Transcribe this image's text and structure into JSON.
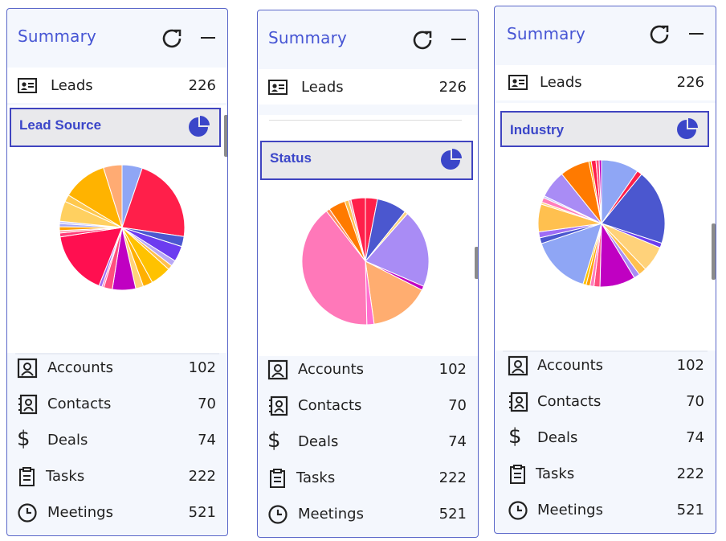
{
  "panels": [
    {
      "title": "Summary",
      "leads": {
        "label": "Leads",
        "count": "226"
      },
      "selector": {
        "label": "Lead Source"
      },
      "chart_data": {
        "type": "pie",
        "values": [
          5.2,
          22.0,
          2.6,
          4.0,
          1.5,
          1.2,
          5.3,
          2.5,
          2.0,
          6.0,
          2.2,
          0.5,
          0.8,
          16.5,
          1.0,
          0.6,
          1.0,
          0.8,
          0.6,
          5.2,
          1.8,
          11.5,
          4.8
        ],
        "colors": [
          "#8fa6f5",
          "#ff1f4a",
          "#4b57cf",
          "#6c3cf0",
          "#b9a8f5",
          "#ffc04f",
          "#ffc200",
          "#ffb000",
          "#ffd27a",
          "#c000c2",
          "#ff4f7e",
          "#ff7ebc",
          "#9e6cf5",
          "#ff0f50",
          "#ff3f7a",
          "#ff9eaa",
          "#ffa000",
          "#a7a7f5",
          "#c7c7ff",
          "#ffd060",
          "#ffc84d",
          "#ffb300",
          "#ffab73"
        ]
      },
      "items": [
        {
          "icon": "account-icon",
          "label": "Accounts",
          "count": "102"
        },
        {
          "icon": "contacts-icon",
          "label": "Contacts",
          "count": "70"
        },
        {
          "icon": "dollar-icon",
          "label": "Deals",
          "count": "74"
        },
        {
          "icon": "clipboard-icon",
          "label": "Tasks",
          "count": "222"
        },
        {
          "icon": "clock-icon",
          "label": "Meetings",
          "count": "521"
        }
      ]
    },
    {
      "title": "Summary",
      "leads": {
        "label": "Leads",
        "count": "226"
      },
      "selector": {
        "label": "Status"
      },
      "chart_data": {
        "type": "pie",
        "values": [
          3.0,
          7.5,
          0.8,
          19.5,
          1.0,
          15.0,
          1.8,
          39.0,
          0.9,
          4.2,
          1.0,
          0.6,
          3.6
        ],
        "colors": [
          "#ff1f4a",
          "#4b57cf",
          "#ffd480",
          "#a98cf5",
          "#c000c2",
          "#ffad70",
          "#ff6fd0",
          "#ff78b9",
          "#ff8b5a",
          "#ff7a00",
          "#ffc04f",
          "#f3a0b0",
          "#ff1f4a"
        ]
      },
      "items": [
        {
          "icon": "account-icon",
          "label": "Accounts",
          "count": "102"
        },
        {
          "icon": "contacts-icon",
          "label": "Contacts",
          "count": "70"
        },
        {
          "icon": "dollar-icon",
          "label": "Deals",
          "count": "74"
        },
        {
          "icon": "clipboard-icon",
          "label": "Tasks",
          "count": "222"
        },
        {
          "icon": "clock-icon",
          "label": "Meetings",
          "count": "521"
        }
      ]
    },
    {
      "title": "Summary",
      "leads": {
        "label": "Leads",
        "count": "226"
      },
      "selector": {
        "label": "Industry"
      },
      "chart_data": {
        "type": "pie",
        "values": [
          9.5,
          1.3,
          19.0,
          1.2,
          6.5,
          2.0,
          1.5,
          9.0,
          1.5,
          1.0,
          1.0,
          0.8,
          15.0,
          1.5,
          1.5,
          7.0,
          0.5,
          1.2,
          0.5,
          7.0,
          7.5,
          0.6,
          1.2,
          0.8,
          0.6
        ],
        "colors": [
          "#8fa6f5",
          "#ff1f4a",
          "#4b57cf",
          "#6c3cf0",
          "#ffd27a",
          "#ffc04f",
          "#a98cf5",
          "#c000c2",
          "#ff4f7e",
          "#ff7ebc",
          "#ffa000",
          "#ffc200",
          "#8fa6f5",
          "#4b57cf",
          "#9e6cf5",
          "#ffc04f",
          "#ffd480",
          "#ff7ebc",
          "#c7c7ff",
          "#a98cf5",
          "#ff7a00",
          "#ffa000",
          "#ff1f4a",
          "#ff4f7e",
          "#c000c2"
        ]
      },
      "items": [
        {
          "icon": "account-icon",
          "label": "Accounts",
          "count": "102"
        },
        {
          "icon": "contacts-icon",
          "label": "Contacts",
          "count": "70"
        },
        {
          "icon": "dollar-icon",
          "label": "Deals",
          "count": "74"
        },
        {
          "icon": "clipboard-icon",
          "label": "Tasks",
          "count": "222"
        },
        {
          "icon": "clock-icon",
          "label": "Meetings",
          "count": "521"
        }
      ]
    }
  ]
}
